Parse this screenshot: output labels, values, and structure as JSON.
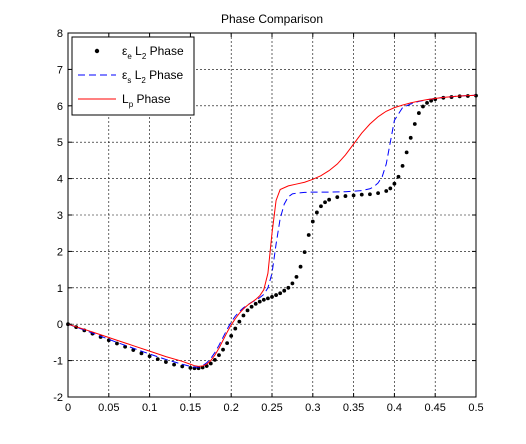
{
  "chart_data": {
    "type": "line",
    "title": "Phase Comparison",
    "xlabel": "",
    "ylabel": "",
    "xlim": [
      0,
      0.5
    ],
    "ylim": [
      -2,
      8
    ],
    "x_ticks": [
      0,
      0.05,
      0.1,
      0.15,
      0.2,
      0.25,
      0.3,
      0.35,
      0.4,
      0.45,
      0.5
    ],
    "x_tick_labels": [
      "0",
      "0.05",
      "0.1",
      "0.15",
      "0.2",
      "0.25",
      "0.3",
      "0.35",
      "0.4",
      "0.45",
      "0.5"
    ],
    "y_ticks": [
      -2,
      -1,
      0,
      1,
      2,
      3,
      4,
      5,
      6,
      7,
      8
    ],
    "y_tick_labels": [
      "-2",
      "-1",
      "0",
      "1",
      "2",
      "3",
      "4",
      "5",
      "6",
      "7",
      "8"
    ],
    "grid": true,
    "legend_position": "top-left",
    "series": [
      {
        "name": "εe L2 Phase",
        "legend": {
          "main": "ε",
          "sub1": "e",
          "mid": " L",
          "sub2": "2",
          "tail": " Phase"
        },
        "style": "dots",
        "color": "#000000",
        "x": [
          0,
          0.01,
          0.02,
          0.03,
          0.04,
          0.05,
          0.06,
          0.07,
          0.08,
          0.09,
          0.1,
          0.11,
          0.12,
          0.13,
          0.14,
          0.15,
          0.155,
          0.16,
          0.165,
          0.17,
          0.175,
          0.18,
          0.185,
          0.19,
          0.195,
          0.2,
          0.205,
          0.21,
          0.215,
          0.22,
          0.225,
          0.23,
          0.235,
          0.24,
          0.245,
          0.25,
          0.255,
          0.26,
          0.265,
          0.27,
          0.275,
          0.28,
          0.285,
          0.29,
          0.295,
          0.3,
          0.305,
          0.31,
          0.315,
          0.32,
          0.33,
          0.34,
          0.35,
          0.36,
          0.37,
          0.38,
          0.39,
          0.395,
          0.4,
          0.405,
          0.41,
          0.415,
          0.42,
          0.425,
          0.43,
          0.435,
          0.44,
          0.445,
          0.45,
          0.46,
          0.47,
          0.48,
          0.49,
          0.5
        ],
        "y": [
          0,
          -0.08,
          -0.17,
          -0.26,
          -0.35,
          -0.44,
          -0.53,
          -0.62,
          -0.71,
          -0.8,
          -0.88,
          -0.96,
          -1.04,
          -1.11,
          -1.16,
          -1.2,
          -1.21,
          -1.21,
          -1.19,
          -1.15,
          -1.08,
          -0.98,
          -0.85,
          -0.7,
          -0.52,
          -0.32,
          -0.12,
          0.07,
          0.24,
          0.38,
          0.48,
          0.56,
          0.62,
          0.67,
          0.71,
          0.75,
          0.8,
          0.85,
          0.92,
          1.0,
          1.12,
          1.3,
          1.58,
          1.98,
          2.45,
          2.82,
          3.07,
          3.24,
          3.35,
          3.42,
          3.49,
          3.52,
          3.54,
          3.56,
          3.57,
          3.6,
          3.66,
          3.73,
          3.86,
          4.05,
          4.35,
          4.72,
          5.12,
          5.5,
          5.8,
          5.98,
          6.08,
          6.14,
          6.18,
          6.22,
          6.24,
          6.26,
          6.27,
          6.28
        ]
      },
      {
        "name": "εs L2 Phase",
        "legend": {
          "main": "ε",
          "sub1": "s",
          "mid": " L",
          "sub2": "2",
          "tail": " Phase"
        },
        "style": "dashed",
        "color": "#0000ff",
        "x": [
          0,
          0.02,
          0.04,
          0.06,
          0.08,
          0.1,
          0.12,
          0.14,
          0.15,
          0.155,
          0.16,
          0.165,
          0.17,
          0.175,
          0.18,
          0.185,
          0.19,
          0.195,
          0.2,
          0.205,
          0.21,
          0.215,
          0.22,
          0.225,
          0.23,
          0.235,
          0.24,
          0.245,
          0.25,
          0.255,
          0.26,
          0.265,
          0.27,
          0.275,
          0.28,
          0.29,
          0.3,
          0.32,
          0.34,
          0.36,
          0.37,
          0.375,
          0.38,
          0.385,
          0.39,
          0.395,
          0.4,
          0.41,
          0.42,
          0.43,
          0.44,
          0.45,
          0.46,
          0.47,
          0.48,
          0.49,
          0.5
        ],
        "y": [
          0,
          -0.16,
          -0.33,
          -0.5,
          -0.66,
          -0.82,
          -0.97,
          -1.1,
          -1.16,
          -1.18,
          -1.18,
          -1.14,
          -1.06,
          -0.94,
          -0.78,
          -0.58,
          -0.36,
          -0.14,
          0.06,
          0.22,
          0.35,
          0.45,
          0.53,
          0.6,
          0.66,
          0.73,
          0.82,
          1.0,
          1.4,
          2.2,
          2.9,
          3.3,
          3.5,
          3.58,
          3.6,
          3.62,
          3.63,
          3.63,
          3.64,
          3.67,
          3.72,
          3.78,
          3.88,
          4.05,
          4.4,
          5.0,
          5.6,
          5.95,
          6.05,
          6.12,
          6.17,
          6.2,
          6.23,
          6.25,
          6.27,
          6.28,
          6.29
        ]
      },
      {
        "name": "Lp Phase",
        "legend": {
          "main": "L",
          "sub1": "p",
          "mid": "",
          "sub2": "",
          "tail": " Phase"
        },
        "style": "solid",
        "color": "#ff0000",
        "x": [
          0,
          0.02,
          0.04,
          0.06,
          0.08,
          0.1,
          0.12,
          0.14,
          0.15,
          0.155,
          0.16,
          0.165,
          0.17,
          0.175,
          0.18,
          0.185,
          0.19,
          0.195,
          0.2,
          0.205,
          0.21,
          0.215,
          0.22,
          0.225,
          0.23,
          0.235,
          0.24,
          0.245,
          0.25,
          0.255,
          0.26,
          0.27,
          0.28,
          0.29,
          0.3,
          0.31,
          0.32,
          0.33,
          0.34,
          0.35,
          0.36,
          0.37,
          0.38,
          0.39,
          0.4,
          0.41,
          0.42,
          0.43,
          0.44,
          0.45,
          0.46,
          0.47,
          0.48,
          0.49,
          0.5
        ],
        "y": [
          0,
          -0.14,
          -0.29,
          -0.44,
          -0.59,
          -0.74,
          -0.89,
          -1.02,
          -1.1,
          -1.14,
          -1.16,
          -1.15,
          -1.1,
          -1.0,
          -0.85,
          -0.66,
          -0.44,
          -0.22,
          -0.02,
          0.15,
          0.3,
          0.42,
          0.52,
          0.6,
          0.68,
          0.78,
          0.95,
          1.4,
          2.5,
          3.4,
          3.7,
          3.8,
          3.85,
          3.9,
          3.98,
          4.08,
          4.22,
          4.4,
          4.65,
          4.95,
          5.25,
          5.5,
          5.7,
          5.85,
          5.95,
          6.02,
          6.08,
          6.13,
          6.17,
          6.2,
          6.23,
          6.25,
          6.27,
          6.28,
          6.29
        ]
      }
    ]
  }
}
